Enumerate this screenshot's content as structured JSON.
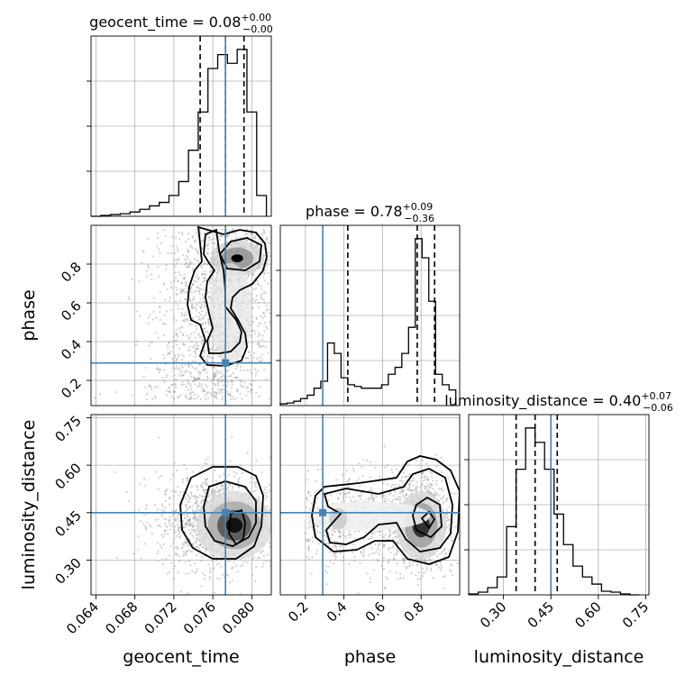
{
  "chart_data": {
    "type": "corner",
    "colors": {
      "truth": "#4682b4",
      "hist": "#000000",
      "points": "#9a9a9a"
    },
    "parameters": [
      {
        "name": "geocent_time",
        "title_value": "0.08",
        "title_plus": "+0.00",
        "title_minus": "−0.00",
        "range": [
          0.0635,
          0.082
        ],
        "ticks": [
          0.064,
          0.068,
          0.072,
          0.076,
          0.08
        ],
        "tick_labels": [
          "0.064",
          "0.068",
          "0.072",
          "0.076",
          "0.080"
        ],
        "quantiles": [
          0.0747,
          0.0773,
          0.0792
        ],
        "truth": 0.0773
      },
      {
        "name": "phase",
        "title_value": "0.78",
        "title_plus": "+0.09",
        "title_minus": "−0.36",
        "range": [
          0.07,
          1.0
        ],
        "ticks": [
          0.2,
          0.4,
          0.6,
          0.8
        ],
        "tick_labels": [
          "0.2",
          "0.4",
          "0.6",
          "0.8"
        ],
        "quantiles": [
          0.42,
          0.78,
          0.87
        ],
        "truth": 0.29
      },
      {
        "name": "luminosity_distance",
        "title_value": "0.40",
        "title_plus": "+0.07",
        "title_minus": "−0.06",
        "range": [
          0.19,
          0.76
        ],
        "ticks": [
          0.3,
          0.45,
          0.6,
          0.75
        ],
        "tick_labels": [
          "0.30",
          "0.45",
          "0.60",
          "0.75"
        ],
        "quantiles": [
          0.34,
          0.4,
          0.47
        ],
        "truth": 0.45
      }
    ],
    "histograms": [
      {
        "param": "geocent_time",
        "edges": [
          0.0635,
          0.0645,
          0.0655,
          0.0665,
          0.0675,
          0.0685,
          0.0695,
          0.0705,
          0.0715,
          0.0725,
          0.0735,
          0.0745,
          0.0755,
          0.0765,
          0.0775,
          0.0785,
          0.0795,
          0.0805,
          0.0815
        ],
        "counts": [
          0,
          0.005,
          0.01,
          0.015,
          0.025,
          0.04,
          0.06,
          0.08,
          0.12,
          0.2,
          0.38,
          0.6,
          0.85,
          0.93,
          0.88,
          0.96,
          0.6,
          0.12
        ]
      },
      {
        "param": "phase",
        "edges": [
          0.07,
          0.105,
          0.14,
          0.175,
          0.21,
          0.245,
          0.28,
          0.315,
          0.35,
          0.385,
          0.42,
          0.455,
          0.49,
          0.525,
          0.56,
          0.595,
          0.63,
          0.665,
          0.7,
          0.735,
          0.77,
          0.805,
          0.84,
          0.875,
          0.91,
          0.945,
          0.98
        ],
        "counts": [
          0.01,
          0.015,
          0.025,
          0.04,
          0.06,
          0.1,
          0.14,
          0.36,
          0.3,
          0.16,
          0.12,
          0.11,
          0.1,
          0.1,
          0.1,
          0.12,
          0.18,
          0.22,
          0.3,
          0.45,
          0.96,
          0.85,
          0.6,
          0.18,
          0.12,
          0.09
        ]
      },
      {
        "param": "luminosity_distance",
        "edges": [
          0.19,
          0.22,
          0.25,
          0.28,
          0.31,
          0.34,
          0.37,
          0.4,
          0.43,
          0.46,
          0.49,
          0.52,
          0.55,
          0.58,
          0.61,
          0.64,
          0.67,
          0.7,
          0.73
        ],
        "counts": [
          0.005,
          0.015,
          0.04,
          0.1,
          0.38,
          0.7,
          0.93,
          0.85,
          0.7,
          0.45,
          0.28,
          0.16,
          0.1,
          0.06,
          0.02,
          0.015,
          0.005,
          0
        ]
      }
    ],
    "pairs": [
      {
        "x": "geocent_time",
        "y": "phase"
      },
      {
        "x": "geocent_time",
        "y": "luminosity_distance"
      },
      {
        "x": "phase",
        "y": "luminosity_distance"
      }
    ]
  }
}
